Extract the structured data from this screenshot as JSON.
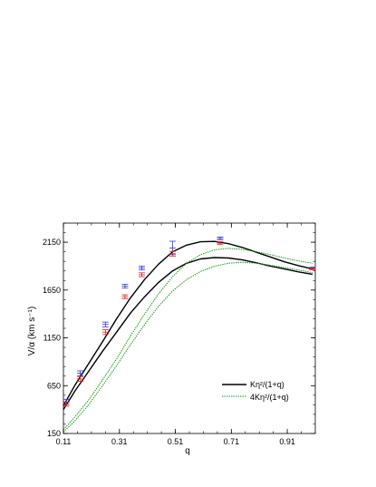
{
  "chart_data": {
    "type": "scatter",
    "title": "",
    "xlabel": "q",
    "ylabel": "V/α (km s⁻¹)",
    "xlim": [
      0.11,
      1.01
    ],
    "ylim": [
      150,
      2350
    ],
    "grid": false,
    "legend_position": "bottom-right",
    "x_ticks": [
      "0.11",
      "0.31",
      "0.51",
      "0.71",
      "0.91"
    ],
    "y_ticks": [
      "150",
      "650",
      "1150",
      "1650",
      "2150"
    ],
    "series": [
      {
        "name": "Kη²/(1+q)",
        "kind": "line",
        "color": "#000000",
        "curves": [
          {
            "x": [
              0.11,
              0.15,
              0.2,
              0.25,
              0.3,
              0.35,
              0.4,
              0.45,
              0.5,
              0.55,
              0.6,
              0.65,
              0.7,
              0.75,
              0.8,
              0.85,
              0.9,
              0.95,
              1.0
            ],
            "y": [
              440,
              650,
              880,
              1110,
              1350,
              1570,
              1760,
              1920,
              2050,
              2120,
              2155,
              2158,
              2135,
              2095,
              2045,
              1995,
              1945,
              1905,
              1870
            ]
          },
          {
            "x": [
              0.11,
              0.15,
              0.2,
              0.25,
              0.3,
              0.35,
              0.4,
              0.45,
              0.5,
              0.55,
              0.6,
              0.65,
              0.7,
              0.75,
              0.8,
              0.85,
              0.9,
              0.95,
              1.0
            ],
            "y": [
              400,
              590,
              800,
              1010,
              1210,
              1410,
              1580,
              1730,
              1850,
              1930,
              1975,
              1990,
              1985,
              1965,
              1935,
              1900,
              1870,
              1840,
              1815
            ]
          }
        ]
      },
      {
        "name": "4Kη²/(1+q)",
        "kind": "dashed-line",
        "color": "#1a9e1a",
        "curves": [
          {
            "x": [
              0.11,
              0.15,
              0.2,
              0.25,
              0.3,
              0.35,
              0.4,
              0.45,
              0.5,
              0.55,
              0.6,
              0.65,
              0.7,
              0.75,
              0.8,
              0.85,
              0.9,
              0.95,
              1.0
            ],
            "y": [
              190,
              320,
              500,
              710,
              930,
              1170,
              1400,
              1610,
              1790,
              1930,
              2020,
              2070,
              2085,
              2075,
              2050,
              2020,
              1985,
              1955,
              1930
            ]
          },
          {
            "x": [
              0.11,
              0.15,
              0.2,
              0.25,
              0.3,
              0.35,
              0.4,
              0.45,
              0.5,
              0.55,
              0.6,
              0.65,
              0.7,
              0.75,
              0.8,
              0.85,
              0.9,
              0.95,
              1.0
            ],
            "y": [
              165,
              280,
              450,
              650,
              860,
              1080,
              1290,
              1480,
              1640,
              1760,
              1845,
              1900,
              1930,
              1940,
              1930,
              1910,
              1885,
              1860,
              1830
            ]
          }
        ]
      },
      {
        "name": "",
        "kind": "errorbar",
        "color": "#3333dd",
        "x": [
          0.12,
          0.17,
          0.26,
          0.33,
          0.39,
          0.5,
          0.67,
          1.0
        ],
        "y": [
          480,
          780,
          1290,
          1690,
          1880,
          2090,
          2190,
          1880
        ],
        "err": [
          25,
          25,
          25,
          20,
          20,
          70,
          15,
          10
        ]
      },
      {
        "name": "",
        "kind": "errorbar",
        "color": "#dd2222",
        "x": [
          0.12,
          0.17,
          0.26,
          0.33,
          0.39,
          0.5,
          0.67,
          1.0
        ],
        "y": [
          455,
          720,
          1210,
          1580,
          1810,
          2030,
          2140,
          1870
        ],
        "err": [
          20,
          25,
          25,
          20,
          20,
          25,
          15,
          10
        ]
      }
    ]
  }
}
